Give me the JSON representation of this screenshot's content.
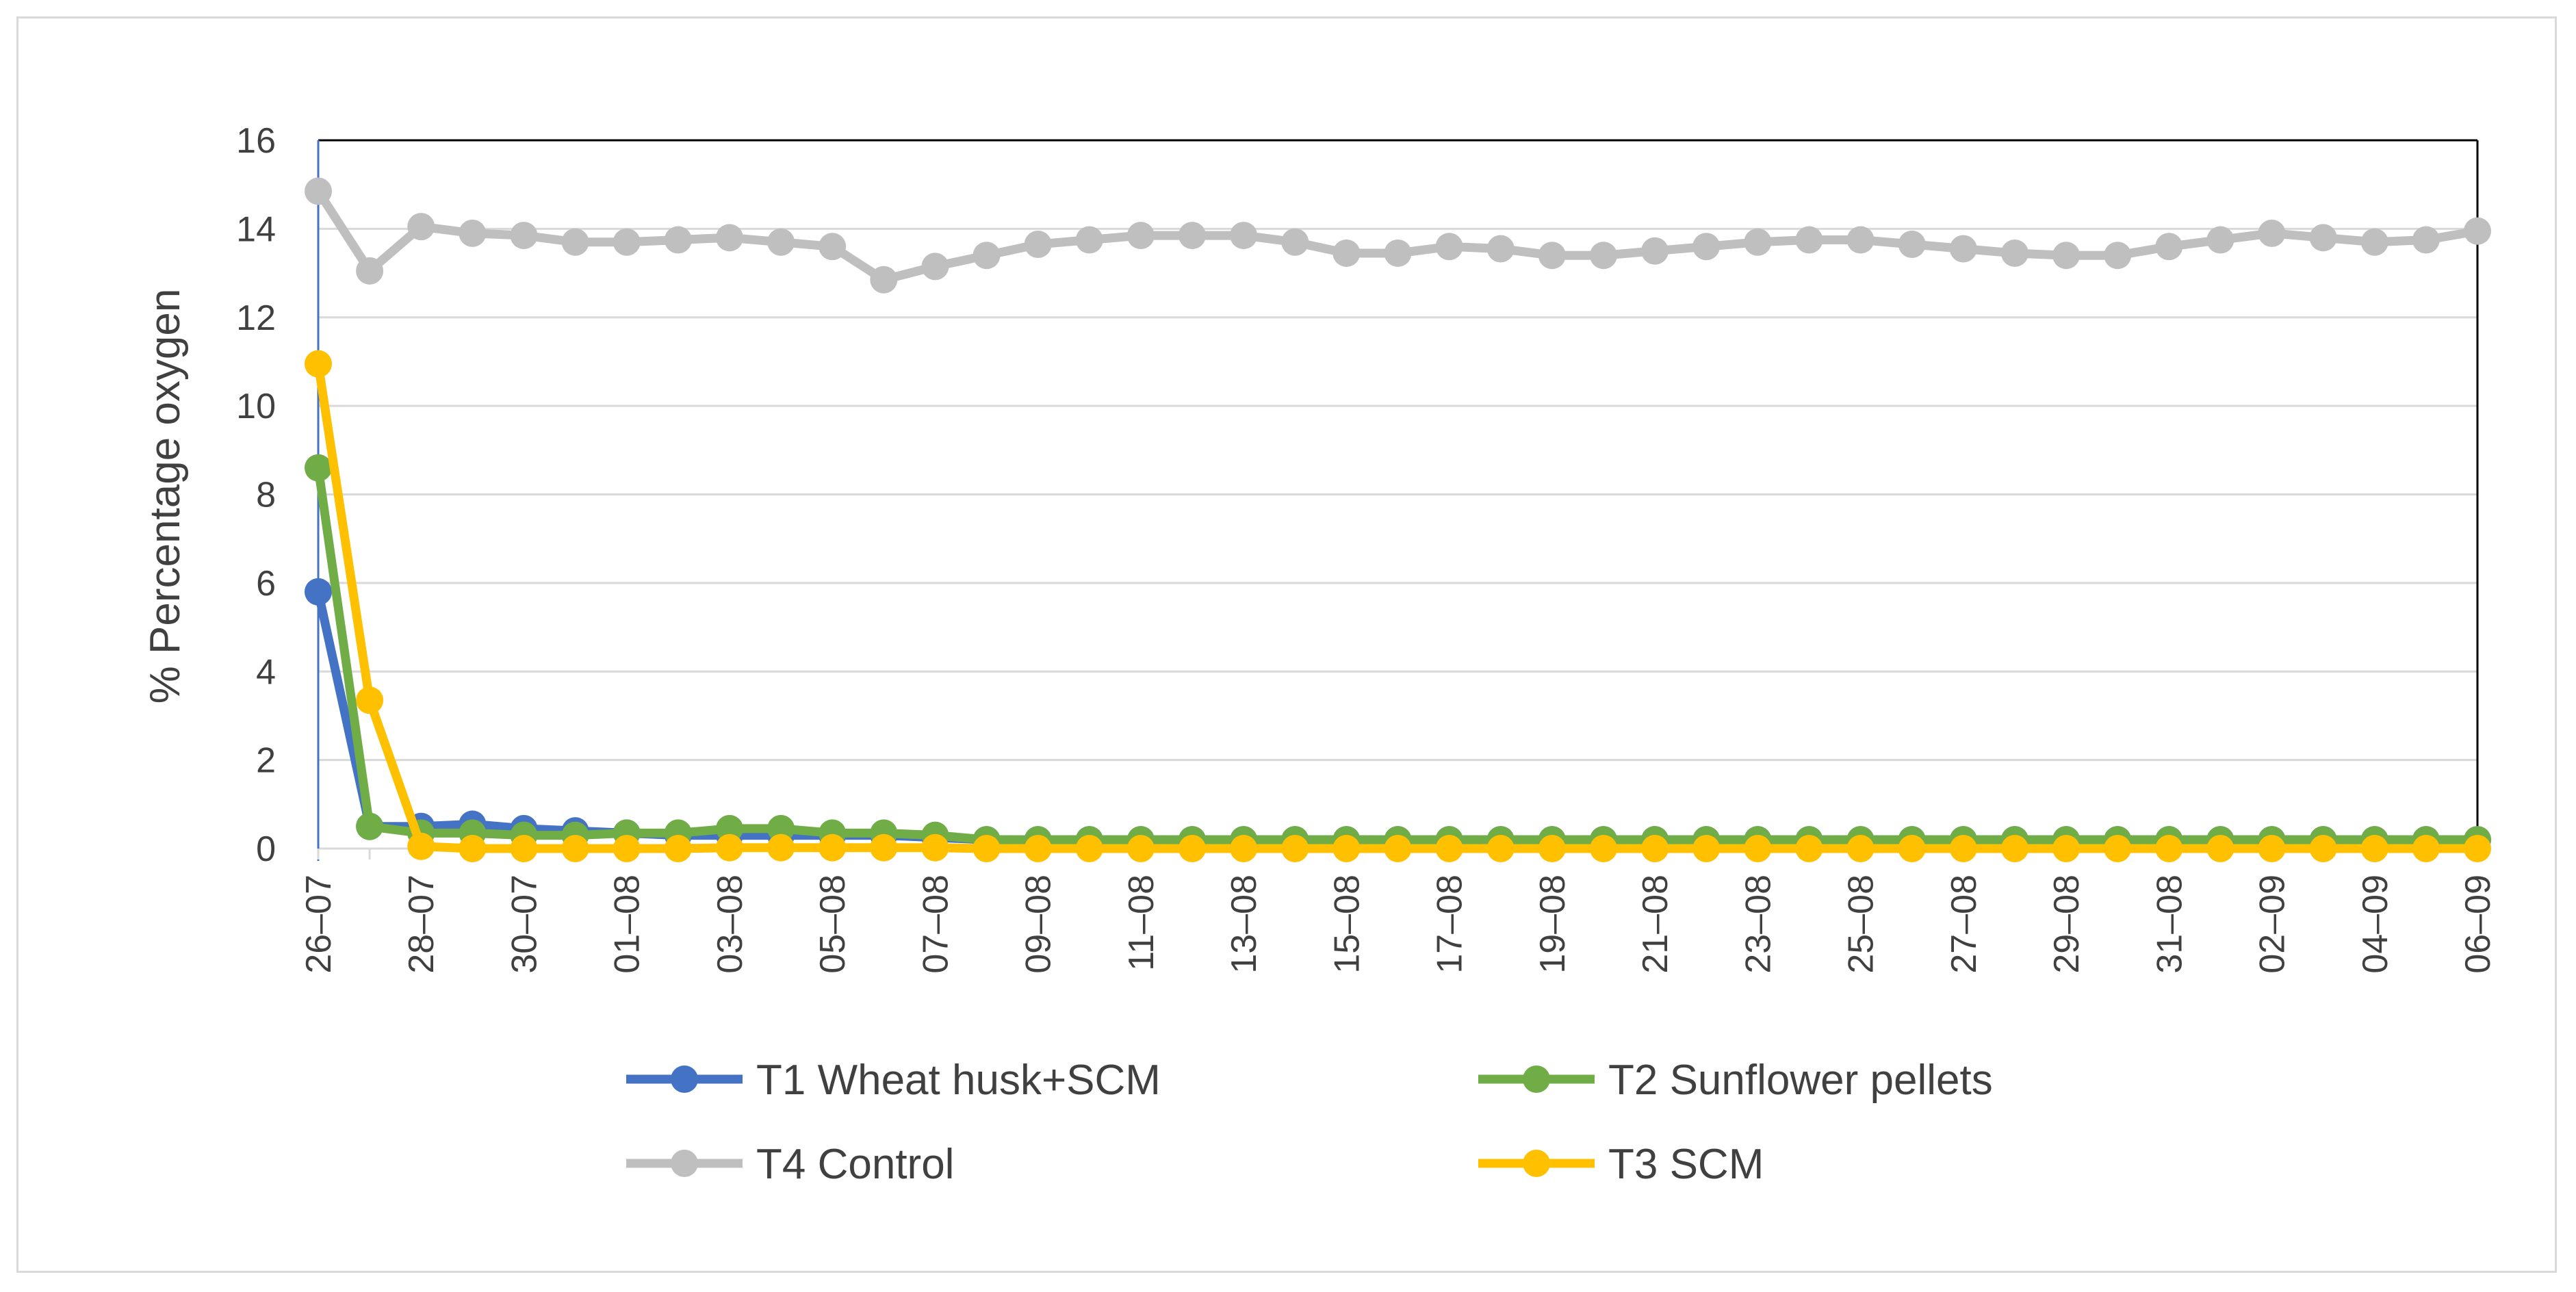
{
  "chart_data": {
    "type": "line",
    "title": "",
    "xlabel": "",
    "ylabel": "% Percentage oxygen",
    "ylim": [
      0,
      16
    ],
    "yticks": [
      "0",
      "2",
      "4",
      "6",
      "8",
      "10",
      "12",
      "14",
      "16"
    ],
    "grid": true,
    "legend_position": "bottom",
    "x": [
      "26-07",
      "27-07",
      "28-07",
      "29-07",
      "30-07",
      "31-07",
      "01-08",
      "02-08",
      "03-08",
      "04-08",
      "05-08",
      "06-08",
      "07-08",
      "08-08",
      "09-08",
      "10-08",
      "11-08",
      "12-08",
      "13-08",
      "14-08",
      "15-08",
      "16-08",
      "17-08",
      "18-08",
      "19-08",
      "20-08",
      "21-08",
      "22-08",
      "23-08",
      "24-08",
      "25-08",
      "26-08",
      "27-08",
      "28-08",
      "29-08",
      "30-08",
      "31-08",
      "01-09",
      "02-09",
      "03-09",
      "04-09",
      "05-09",
      "06-09"
    ],
    "xtick_labels": [
      "26–07",
      "28–07",
      "30–07",
      "01–08",
      "03–08",
      "05–08",
      "07–08",
      "09–08",
      "11–08",
      "13–08",
      "15–08",
      "17–08",
      "19–08",
      "21–08",
      "23–08",
      "25–08",
      "27–08",
      "29–08",
      "31–08",
      "02–09",
      "04–09",
      "06–09"
    ],
    "series": [
      {
        "name": "T1 Wheat husk+SCM",
        "color": "#4472c4",
        "values": [
          5.8,
          0.5,
          0.5,
          0.55,
          0.45,
          0.4,
          0.35,
          0.3,
          0.3,
          0.3,
          0.3,
          0.3,
          0.25,
          0.2,
          0.2,
          0.2,
          0.2,
          0.2,
          0.2,
          0.2,
          0.2,
          0.2,
          0.2,
          0.2,
          0.2,
          0.2,
          0.2,
          0.2,
          0.2,
          0.2,
          0.2,
          0.2,
          0.2,
          0.2,
          0.2,
          0.2,
          0.2,
          0.2,
          0.2,
          0.2,
          0.2,
          0.2,
          0.2
        ]
      },
      {
        "name": "T2 Sunflower pellets",
        "color": "#70ad47",
        "values": [
          8.6,
          0.5,
          0.35,
          0.35,
          0.3,
          0.3,
          0.35,
          0.35,
          0.45,
          0.45,
          0.35,
          0.35,
          0.3,
          0.2,
          0.2,
          0.2,
          0.2,
          0.2,
          0.2,
          0.2,
          0.2,
          0.2,
          0.2,
          0.2,
          0.2,
          0.2,
          0.2,
          0.2,
          0.2,
          0.2,
          0.2,
          0.2,
          0.2,
          0.2,
          0.2,
          0.2,
          0.2,
          0.2,
          0.2,
          0.2,
          0.2,
          0.2,
          0.2
        ]
      },
      {
        "name": "T4 Control",
        "color": "#bfbfbf",
        "values": [
          14.85,
          13.05,
          14.05,
          13.9,
          13.85,
          13.7,
          13.7,
          13.75,
          13.8,
          13.7,
          13.6,
          12.85,
          13.15,
          13.4,
          13.65,
          13.75,
          13.85,
          13.85,
          13.85,
          13.7,
          13.45,
          13.45,
          13.6,
          13.55,
          13.4,
          13.4,
          13.5,
          13.6,
          13.7,
          13.75,
          13.75,
          13.65,
          13.55,
          13.45,
          13.4,
          13.4,
          13.6,
          13.75,
          13.9,
          13.8,
          13.7,
          13.75,
          13.95
        ]
      },
      {
        "name": "T3 SCM",
        "color": "#ffc000",
        "values": [
          10.95,
          3.35,
          0.05,
          0.0,
          0.0,
          0.0,
          0.0,
          0.0,
          0.02,
          0.02,
          0.02,
          0.02,
          0.02,
          0.0,
          0.0,
          0.0,
          0.0,
          0.0,
          0.0,
          0.0,
          0.0,
          0.0,
          0.0,
          0.0,
          0.0,
          0.0,
          0.0,
          0.0,
          0.0,
          0.0,
          0.0,
          0.0,
          0.0,
          0.0,
          0.0,
          0.0,
          0.0,
          0.0,
          0.0,
          0.0,
          0.0,
          0.0,
          0.0
        ]
      }
    ],
    "legend": [
      {
        "label": "T1 Wheat husk+SCM",
        "color": "#4472c4"
      },
      {
        "label": "T2 Sunflower pellets",
        "color": "#70ad47"
      },
      {
        "label": "T4 Control",
        "color": "#bfbfbf"
      },
      {
        "label": "T3 SCM",
        "color": "#ffc000"
      }
    ]
  }
}
